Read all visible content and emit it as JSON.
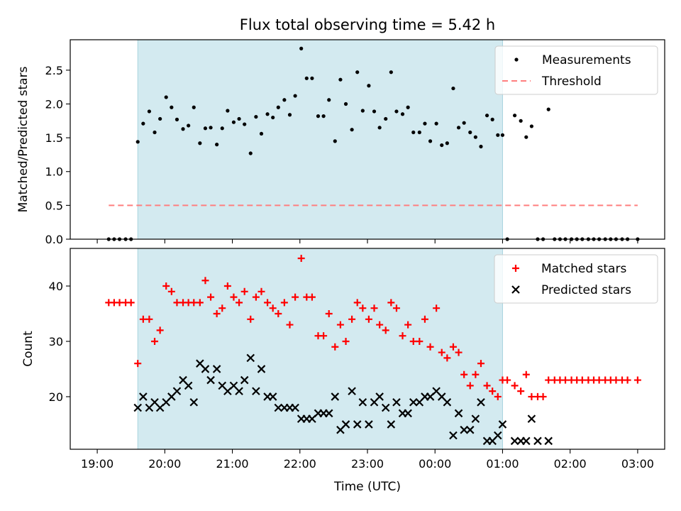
{
  "figure": {
    "title": "Flux total observing time = 5.42 h",
    "xlabel": "Time (UTC)",
    "shade_color": "#d3eaf0",
    "shade_edge": "#a9d4de"
  },
  "chart_data": [
    {
      "type": "scatter",
      "title": "Flux total observing time = 5.42 h",
      "xlabel": "",
      "ylabel": "Matched/Predicted stars",
      "x_unit": "hours since 19:00 UTC",
      "xlim": [
        -0.4,
        8.4
      ],
      "ylim": [
        0,
        2.95
      ],
      "yticks": [
        0.0,
        0.5,
        1.0,
        1.5,
        2.0,
        2.5
      ],
      "ytick_labels": [
        "0.0",
        "0.5",
        "1.0",
        "1.5",
        "2.0",
        "2.5"
      ],
      "shaded_region": [
        0.6,
        6.0
      ],
      "grid": false,
      "legend": {
        "placement": "top-right",
        "entries": [
          "Measurements",
          "Threshold"
        ]
      },
      "series": [
        {
          "name": "Measurements",
          "marker": "dot",
          "color": "#000000",
          "x": [
            0.17,
            0.25,
            0.33,
            0.42,
            0.5,
            0.6,
            0.68,
            0.77,
            0.85,
            0.93,
            1.02,
            1.1,
            1.18,
            1.27,
            1.35,
            1.43,
            1.52,
            1.6,
            1.68,
            1.77,
            1.85,
            1.93,
            2.02,
            2.1,
            2.18,
            2.27,
            2.35,
            2.43,
            2.52,
            2.6,
            2.68,
            2.77,
            2.85,
            2.93,
            3.02,
            3.1,
            3.18,
            3.27,
            3.35,
            3.43,
            3.52,
            3.6,
            3.68,
            3.77,
            3.85,
            3.93,
            4.02,
            4.1,
            4.18,
            4.27,
            4.35,
            4.43,
            4.52,
            4.6,
            4.68,
            4.77,
            4.85,
            4.93,
            5.02,
            5.1,
            5.18,
            5.27,
            5.35,
            5.43,
            5.52,
            5.6,
            5.68,
            5.77,
            5.85,
            5.93,
            6.0,
            6.07,
            6.18,
            6.27,
            6.35,
            6.43,
            6.52,
            6.6,
            6.68,
            6.77,
            6.85,
            6.93,
            7.02,
            7.1,
            7.18,
            7.27,
            7.35,
            7.43,
            7.52,
            7.6,
            7.68,
            7.77,
            7.85,
            8.0
          ],
          "y": [
            0,
            0,
            0,
            0,
            0,
            1.44,
            1.71,
            1.89,
            1.58,
            1.78,
            2.1,
            1.95,
            1.77,
            1.63,
            1.68,
            1.95,
            1.42,
            1.64,
            1.65,
            1.4,
            1.64,
            1.9,
            1.73,
            1.78,
            1.7,
            1.27,
            1.81,
            1.56,
            1.85,
            1.8,
            1.95,
            2.06,
            1.84,
            2.12,
            2.82,
            2.38,
            2.38,
            1.82,
            1.82,
            2.06,
            1.45,
            2.36,
            2.0,
            1.62,
            2.47,
            1.9,
            2.27,
            1.89,
            1.65,
            1.78,
            2.47,
            1.89,
            1.85,
            1.95,
            1.58,
            1.58,
            1.71,
            1.45,
            1.71,
            1.39,
            1.42,
            2.23,
            1.65,
            1.72,
            1.58,
            1.51,
            1.37,
            1.83,
            1.77,
            1.54,
            1.54,
            0,
            1.83,
            1.75,
            1.51,
            1.67,
            0,
            0,
            1.92,
            0,
            0,
            0,
            0,
            0,
            0,
            0,
            0,
            0,
            0,
            0,
            0,
            0,
            0,
            0
          ]
        },
        {
          "name": "Threshold",
          "style": "dashed",
          "color": "#ff7f7f",
          "x": [
            0.17,
            8.0
          ],
          "y": [
            0.5,
            0.5
          ]
        }
      ]
    },
    {
      "type": "scatter",
      "title": "",
      "xlabel": "Time (UTC)",
      "ylabel": "Count",
      "x_unit": "hours since 19:00 UTC",
      "xlim": [
        -0.4,
        8.4
      ],
      "ylim": [
        10.5,
        46.8
      ],
      "yticks": [
        20,
        30,
        40
      ],
      "ytick_labels": [
        "20",
        "30",
        "40"
      ],
      "xticks": [
        0,
        1,
        2,
        3,
        4,
        5,
        6,
        7,
        8
      ],
      "xtick_labels": [
        "19:00",
        "20:00",
        "21:00",
        "22:00",
        "23:00",
        "00:00",
        "01:00",
        "02:00",
        "03:00"
      ],
      "shaded_region": [
        0.6,
        6.0
      ],
      "grid": false,
      "legend": {
        "placement": "top-right",
        "entries": [
          "Matched stars",
          "Predicted stars"
        ]
      },
      "series": [
        {
          "name": "Matched stars",
          "marker": "plus",
          "color": "#ff0000",
          "x": [
            0.17,
            0.25,
            0.33,
            0.42,
            0.5,
            0.6,
            0.68,
            0.77,
            0.85,
            0.93,
            1.02,
            1.1,
            1.18,
            1.27,
            1.35,
            1.43,
            1.52,
            1.6,
            1.68,
            1.77,
            1.85,
            1.93,
            2.02,
            2.1,
            2.18,
            2.27,
            2.35,
            2.43,
            2.52,
            2.6,
            2.68,
            2.77,
            2.85,
            2.93,
            3.02,
            3.1,
            3.18,
            3.27,
            3.35,
            3.43,
            3.52,
            3.6,
            3.68,
            3.77,
            3.85,
            3.93,
            4.02,
            4.1,
            4.18,
            4.27,
            4.35,
            4.43,
            4.52,
            4.6,
            4.68,
            4.77,
            4.85,
            4.93,
            5.02,
            5.1,
            5.18,
            5.27,
            5.35,
            5.43,
            5.52,
            5.6,
            5.68,
            5.77,
            5.85,
            5.93,
            6.0,
            6.07,
            6.18,
            6.27,
            6.35,
            6.43,
            6.52,
            6.6,
            6.68,
            6.77,
            6.85,
            6.93,
            7.02,
            7.1,
            7.18,
            7.27,
            7.35,
            7.43,
            7.52,
            7.6,
            7.68,
            7.77,
            7.85,
            8.0
          ],
          "y": [
            37,
            37,
            37,
            37,
            37,
            26,
            34,
            34,
            30,
            32,
            40,
            39,
            37,
            37,
            37,
            37,
            37,
            41,
            38,
            35,
            36,
            40,
            38,
            37,
            39,
            34,
            38,
            39,
            37,
            36,
            35,
            37,
            33,
            38,
            45,
            38,
            38,
            31,
            31,
            35,
            29,
            33,
            30,
            34,
            37,
            36,
            34,
            36,
            33,
            32,
            37,
            36,
            31,
            33,
            30,
            30,
            34,
            29,
            36,
            28,
            27,
            29,
            28,
            24,
            22,
            24,
            26,
            22,
            21,
            20,
            23,
            23,
            22,
            21,
            24,
            20,
            20,
            20,
            23,
            23,
            23,
            23,
            23,
            23,
            23,
            23,
            23,
            23,
            23,
            23,
            23,
            23,
            23,
            23
          ]
        },
        {
          "name": "Predicted stars",
          "marker": "x",
          "color": "#000000",
          "x": [
            0.6,
            0.68,
            0.77,
            0.85,
            0.93,
            1.02,
            1.1,
            1.18,
            1.27,
            1.35,
            1.43,
            1.52,
            1.6,
            1.68,
            1.77,
            1.85,
            1.93,
            2.02,
            2.1,
            2.18,
            2.27,
            2.35,
            2.43,
            2.52,
            2.6,
            2.68,
            2.77,
            2.85,
            2.93,
            3.02,
            3.1,
            3.18,
            3.27,
            3.35,
            3.43,
            3.52,
            3.6,
            3.68,
            3.77,
            3.85,
            3.93,
            4.02,
            4.1,
            4.18,
            4.27,
            4.35,
            4.43,
            4.52,
            4.6,
            4.68,
            4.77,
            4.85,
            4.93,
            5.02,
            5.1,
            5.18,
            5.27,
            5.35,
            5.43,
            5.52,
            5.6,
            5.68,
            5.77,
            5.85,
            5.93,
            6.0,
            6.18,
            6.27,
            6.35,
            6.43,
            6.52,
            6.68
          ],
          "y": [
            18,
            20,
            18,
            19,
            18,
            19,
            20,
            21,
            23,
            22,
            19,
            26,
            25,
            23,
            25,
            22,
            21,
            22,
            21,
            23,
            27,
            21,
            25,
            20,
            20,
            18,
            18,
            18,
            18,
            16,
            16,
            16,
            17,
            17,
            17,
            20,
            14,
            15,
            21,
            15,
            19,
            15,
            19,
            20,
            18,
            15,
            19,
            17,
            17,
            19,
            19,
            20,
            20,
            21,
            20,
            19,
            13,
            17,
            14,
            14,
            16,
            19,
            12,
            12,
            13,
            15,
            12,
            12,
            12,
            16,
            12,
            12
          ]
        }
      ]
    }
  ]
}
